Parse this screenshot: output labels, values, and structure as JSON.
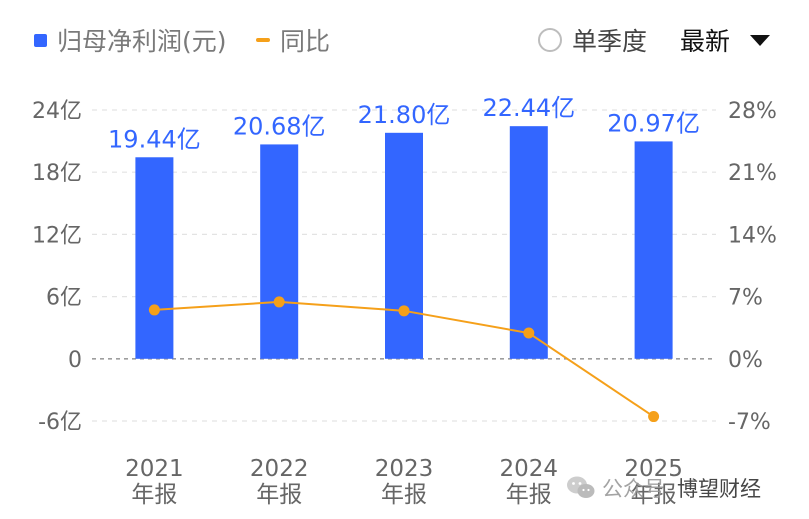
{
  "legend": {
    "net_profit_label": "归母净利润(元)",
    "yoy_label": "同比"
  },
  "controls": {
    "single_quarter_label": "单季度",
    "latest_label": "最新"
  },
  "watermark": {
    "account_type": "公众号",
    "name": "博望财经"
  },
  "colors": {
    "bar": "#3366ff",
    "line": "#f5a01a",
    "grid": "#e3e3e3",
    "zero_line": "#9e9e9e",
    "axis_text": "#666666",
    "value_label": "#3366ff"
  },
  "chart_data": {
    "type": "bar",
    "categories": [
      [
        "2021",
        "年报"
      ],
      [
        "2022",
        "年报"
      ],
      [
        "2023",
        "年报"
      ],
      [
        "2024",
        "年报"
      ],
      [
        "2025",
        "年报"
      ]
    ],
    "series": [
      {
        "name": "归母净利润(元)",
        "type": "bar",
        "axis": "left",
        "values": [
          19.44,
          20.68,
          21.8,
          22.44,
          20.97
        ],
        "labels": [
          "19.44亿",
          "20.68亿",
          "21.80亿",
          "22.44亿",
          "20.97亿"
        ]
      },
      {
        "name": "同比",
        "type": "line",
        "axis": "right",
        "values": [
          5.5,
          6.4,
          5.4,
          2.9,
          -6.5
        ]
      }
    ],
    "left_axis": {
      "ticks": [
        24,
        18,
        12,
        6,
        0,
        -6
      ],
      "tick_labels": [
        "24亿",
        "18亿",
        "12亿",
        "6亿",
        "0",
        "-6亿"
      ],
      "range": [
        -6,
        24
      ]
    },
    "right_axis": {
      "ticks": [
        28,
        21,
        14,
        7,
        0,
        -7
      ],
      "tick_labels": [
        "28%",
        "21%",
        "14%",
        "7%",
        "0%",
        "-7%"
      ],
      "range": [
        -7,
        28
      ]
    },
    "grid": true,
    "legend_position": "top-left"
  }
}
